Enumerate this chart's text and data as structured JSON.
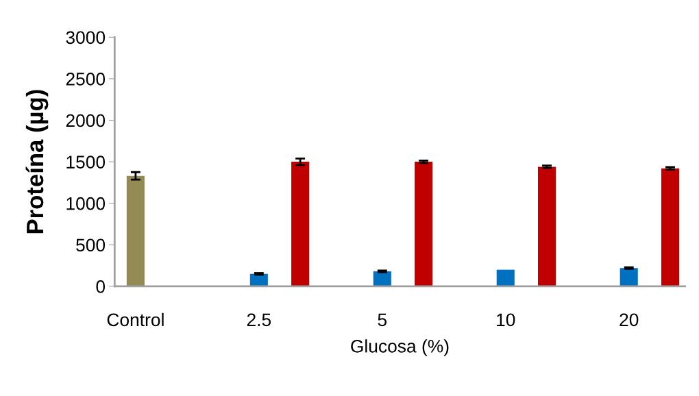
{
  "chart_data": {
    "type": "bar",
    "xlabel": "Glucosa (%)",
    "ylabel": "Proteína (µg)",
    "categories": [
      "Control",
      "2.5",
      "5",
      "10",
      "20"
    ],
    "series": [
      {
        "colors": [
          "#948a54",
          "#0070c0",
          "#0070c0",
          "#0070c0",
          "#0070c0"
        ],
        "values": [
          1330,
          150,
          180,
          200,
          220
        ],
        "errors": [
          45,
          10,
          10,
          null,
          10
        ]
      },
      {
        "color": "#c00000",
        "values": [
          null,
          1500,
          1500,
          1440,
          1420
        ],
        "errors": [
          null,
          40,
          15,
          15,
          15
        ]
      }
    ],
    "ylim": [
      0,
      3000
    ],
    "yticks": [
      0,
      500,
      1000,
      1500,
      2000,
      2500,
      3000
    ],
    "grid": false,
    "legend": false
  }
}
